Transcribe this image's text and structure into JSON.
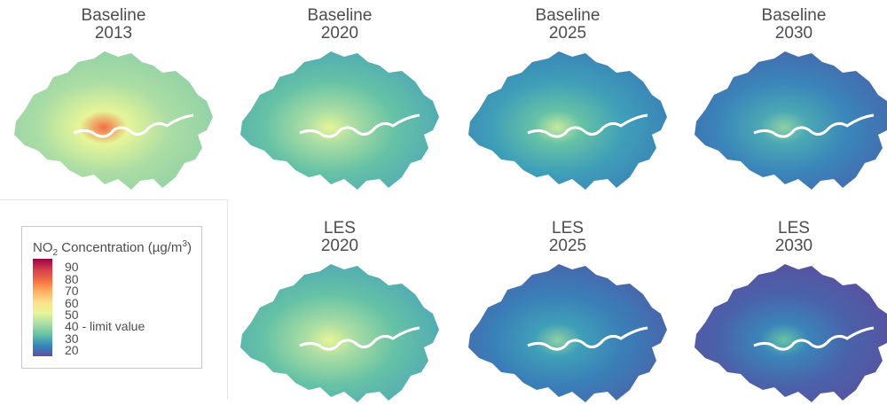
{
  "panels": [
    {
      "scenario": "Baseline",
      "year": "2013",
      "colors": [
        "#f46d43",
        "#e6f598",
        "#abdda4",
        "#8fd0a6"
      ]
    },
    {
      "scenario": "Baseline",
      "year": "2020",
      "colors": [
        "#e6f598",
        "#abdda4",
        "#66c2a5",
        "#4ea8b6"
      ]
    },
    {
      "scenario": "Baseline",
      "year": "2025",
      "colors": [
        "#c7e9a0",
        "#66c2a5",
        "#3f9fb8",
        "#3a80b8"
      ]
    },
    {
      "scenario": "Baseline",
      "year": "2030",
      "colors": [
        "#8fd0a6",
        "#4aa8b4",
        "#3a85ba",
        "#4667ad"
      ]
    },
    {
      "scenario": "LES",
      "year": "2020",
      "colors": [
        "#e6f598",
        "#abdda4",
        "#66c2a5",
        "#4ea8b6"
      ]
    },
    {
      "scenario": "LES",
      "year": "2025",
      "colors": [
        "#8fd0a6",
        "#3f9fb8",
        "#3a7fb8",
        "#4a62aa"
      ]
    },
    {
      "scenario": "LES",
      "year": "2030",
      "colors": [
        "#66c2a5",
        "#3a85ba",
        "#4a62aa",
        "#5a50a0"
      ]
    }
  ],
  "legend": {
    "title_prefix": "NO",
    "title_sub": "2",
    "title_rest": " Concentration (µg/m",
    "title_sup": "3",
    "title_end": ")",
    "ticks": [
      "90",
      "80",
      "70",
      "60",
      "50",
      "40 - limit value",
      "30",
      "20"
    ],
    "range": [
      15,
      97
    ],
    "palette": "Spectral (reversed)"
  }
}
